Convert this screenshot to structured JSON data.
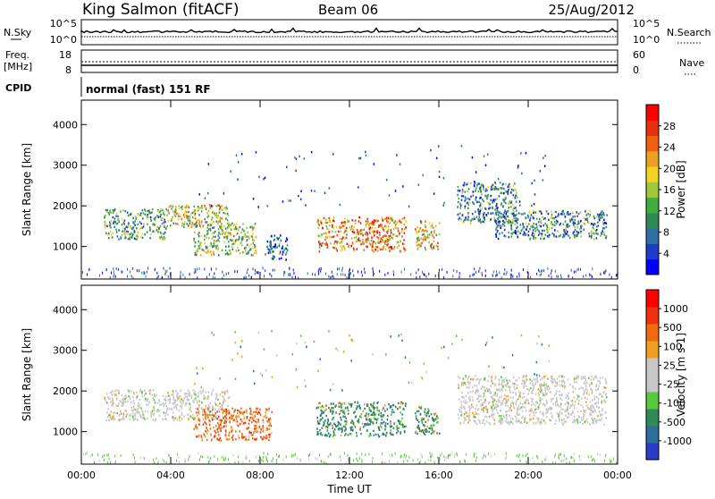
{
  "header": {
    "station": "King Salmon (fitACF)",
    "beam": "Beam 06",
    "date": "25/Aug/2012"
  },
  "aux_panels": {
    "nsky_label": "N.Sky",
    "nsearch_label": "N.Search",
    "nsky_ticks": [
      "10^5",
      "10^0"
    ],
    "nsearch_ticks": [
      "10^5",
      "10^0"
    ],
    "freq_label": "Freq.",
    "freq_unit": "[MHz]",
    "freq_ticks": [
      "18",
      "8"
    ],
    "nave_label": "Nave",
    "nave_ticks": [
      "60",
      "0"
    ],
    "cpid_label": "CPID",
    "cpid_value": "normal (fast) 151 RF"
  },
  "chart_data": [
    {
      "type": "heatmap",
      "parameter": "power",
      "ylabel": "Slant Range [km]",
      "ylim": [
        200,
        4600
      ],
      "yticks": [
        "4000",
        "3000",
        "2000",
        "1000"
      ],
      "colorbar": {
        "label": "Power [dB]",
        "ticks": [
          "28",
          "24",
          "20",
          "16",
          "12",
          "8",
          "4"
        ],
        "colors": [
          "#0000ff",
          "#1d3cc8",
          "#2f6fa8",
          "#2e8b57",
          "#3fae3f",
          "#a0c83c",
          "#f2d321",
          "#f0a020",
          "#f06010",
          "#e83010",
          "#ff0000"
        ]
      },
      "echo_regions": [
        {
          "t": [
            1.0,
            3.8
          ],
          "r": [
            1200,
            1950
          ],
          "level": 0.35
        },
        {
          "t": [
            3.8,
            6.6
          ],
          "r": [
            1500,
            2050
          ],
          "level": 0.55
        },
        {
          "t": [
            5.0,
            7.8
          ],
          "r": [
            800,
            1600
          ],
          "level": 0.45
        },
        {
          "t": [
            8.2,
            9.2
          ],
          "r": [
            700,
            1300
          ],
          "level": 0.2
        },
        {
          "t": [
            10.5,
            14.5
          ],
          "r": [
            900,
            1750
          ],
          "level": 0.7
        },
        {
          "t": [
            14.9,
            16.0
          ],
          "r": [
            950,
            1650
          ],
          "level": 0.6
        },
        {
          "t": [
            16.8,
            19.5
          ],
          "r": [
            1600,
            2600
          ],
          "level": 0.3
        },
        {
          "t": [
            18.5,
            23.5
          ],
          "r": [
            1200,
            1900
          ],
          "level": 0.3
        }
      ]
    },
    {
      "type": "heatmap",
      "parameter": "velocity",
      "xlabel": "Time UT",
      "ylabel": "Slant Range [km]",
      "xlim": [
        "00:00",
        "00:00"
      ],
      "xticks": [
        "00:00",
        "04:00",
        "08:00",
        "12:00",
        "16:00",
        "20:00",
        "00:00"
      ],
      "ylim": [
        200,
        4600
      ],
      "yticks": [
        "4000",
        "3000",
        "2000",
        "1000"
      ],
      "colorbar": {
        "label": "Velocity [m s-1]",
        "ticks": [
          "1000",
          "500",
          "100",
          "25",
          "-25",
          "-100",
          "-500",
          "-1000"
        ],
        "colors": [
          "#2a3cc8",
          "#2e6e9a",
          "#2e8b57",
          "#58c83c",
          "#c8c8c8",
          "#c8c8c8",
          "#f0a020",
          "#f06a10",
          "#f03010",
          "#ff0000"
        ]
      },
      "echo_regions": [
        {
          "t": [
            1.0,
            6.6
          ],
          "r": [
            1300,
            2050
          ],
          "vel": "ground"
        },
        {
          "t": [
            5.0,
            8.5
          ],
          "r": [
            800,
            1600
          ],
          "vel": "away"
        },
        {
          "t": [
            10.5,
            14.5
          ],
          "r": [
            900,
            1750
          ],
          "vel": "toward"
        },
        {
          "t": [
            14.9,
            16.0
          ],
          "r": [
            950,
            1650
          ],
          "vel": "toward"
        },
        {
          "t": [
            16.8,
            23.5
          ],
          "r": [
            1200,
            2400
          ],
          "vel": "ground"
        }
      ]
    }
  ]
}
